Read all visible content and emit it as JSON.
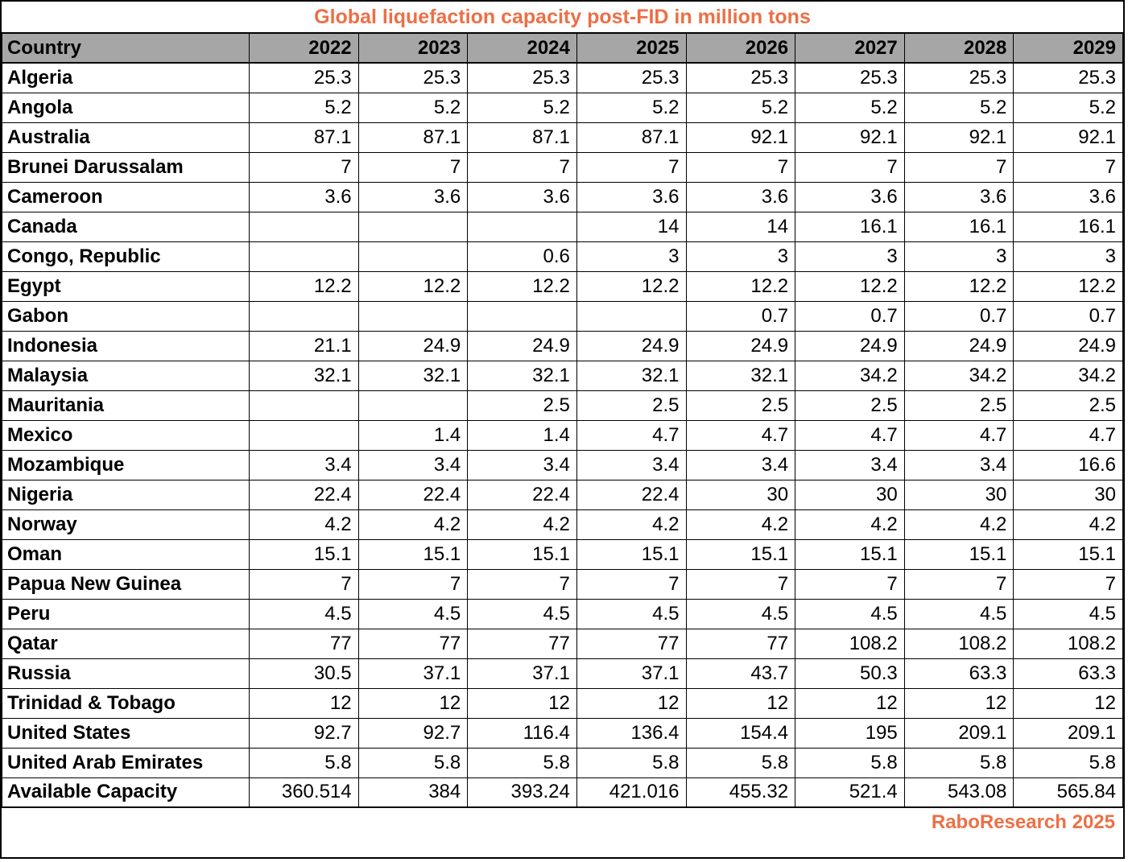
{
  "colors": {
    "accent_orange": "#ED6F45",
    "header_gray": "#A6A6A6",
    "grid_border": "#000000",
    "text_black": "#000000"
  },
  "chart_data": {
    "type": "table",
    "title": "Global liquefaction capacity post-FID in million tons",
    "unit": "million tons",
    "source": "RaboResearch 2025",
    "columns": [
      "Country",
      "2022",
      "2023",
      "2024",
      "2025",
      "2026",
      "2027",
      "2028",
      "2029"
    ],
    "rows": [
      {
        "country": "Algeria",
        "values": [
          "25.3",
          "25.3",
          "25.3",
          "25.3",
          "25.3",
          "25.3",
          "25.3",
          "25.3"
        ]
      },
      {
        "country": "Angola",
        "values": [
          "5.2",
          "5.2",
          "5.2",
          "5.2",
          "5.2",
          "5.2",
          "5.2",
          "5.2"
        ]
      },
      {
        "country": "Australia",
        "values": [
          "87.1",
          "87.1",
          "87.1",
          "87.1",
          "92.1",
          "92.1",
          "92.1",
          "92.1"
        ]
      },
      {
        "country": "Brunei Darussalam",
        "values": [
          "7",
          "7",
          "7",
          "7",
          "7",
          "7",
          "7",
          "7"
        ]
      },
      {
        "country": "Cameroon",
        "values": [
          "3.6",
          "3.6",
          "3.6",
          "3.6",
          "3.6",
          "3.6",
          "3.6",
          "3.6"
        ]
      },
      {
        "country": "Canada",
        "values": [
          "",
          "",
          "",
          "14",
          "14",
          "16.1",
          "16.1",
          "16.1"
        ]
      },
      {
        "country": "Congo, Republic",
        "values": [
          "",
          "",
          "0.6",
          "3",
          "3",
          "3",
          "3",
          "3"
        ]
      },
      {
        "country": "Egypt",
        "values": [
          "12.2",
          "12.2",
          "12.2",
          "12.2",
          "12.2",
          "12.2",
          "12.2",
          "12.2"
        ]
      },
      {
        "country": "Gabon",
        "values": [
          "",
          "",
          "",
          "",
          "0.7",
          "0.7",
          "0.7",
          "0.7"
        ]
      },
      {
        "country": "Indonesia",
        "values": [
          "21.1",
          "24.9",
          "24.9",
          "24.9",
          "24.9",
          "24.9",
          "24.9",
          "24.9"
        ]
      },
      {
        "country": "Malaysia",
        "values": [
          "32.1",
          "32.1",
          "32.1",
          "32.1",
          "32.1",
          "34.2",
          "34.2",
          "34.2"
        ]
      },
      {
        "country": "Mauritania",
        "values": [
          "",
          "",
          "2.5",
          "2.5",
          "2.5",
          "2.5",
          "2.5",
          "2.5"
        ]
      },
      {
        "country": "Mexico",
        "values": [
          "",
          "1.4",
          "1.4",
          "4.7",
          "4.7",
          "4.7",
          "4.7",
          "4.7"
        ]
      },
      {
        "country": "Mozambique",
        "values": [
          "3.4",
          "3.4",
          "3.4",
          "3.4",
          "3.4",
          "3.4",
          "3.4",
          "16.6"
        ]
      },
      {
        "country": "Nigeria",
        "values": [
          "22.4",
          "22.4",
          "22.4",
          "22.4",
          "30",
          "30",
          "30",
          "30"
        ]
      },
      {
        "country": "Norway",
        "values": [
          "4.2",
          "4.2",
          "4.2",
          "4.2",
          "4.2",
          "4.2",
          "4.2",
          "4.2"
        ]
      },
      {
        "country": "Oman",
        "values": [
          "15.1",
          "15.1",
          "15.1",
          "15.1",
          "15.1",
          "15.1",
          "15.1",
          "15.1"
        ]
      },
      {
        "country": "Papua New Guinea",
        "values": [
          "7",
          "7",
          "7",
          "7",
          "7",
          "7",
          "7",
          "7"
        ]
      },
      {
        "country": "Peru",
        "values": [
          "4.5",
          "4.5",
          "4.5",
          "4.5",
          "4.5",
          "4.5",
          "4.5",
          "4.5"
        ]
      },
      {
        "country": "Qatar",
        "values": [
          "77",
          "77",
          "77",
          "77",
          "77",
          "108.2",
          "108.2",
          "108.2"
        ]
      },
      {
        "country": "Russia",
        "values": [
          "30.5",
          "37.1",
          "37.1",
          "37.1",
          "43.7",
          "50.3",
          "63.3",
          "63.3"
        ]
      },
      {
        "country": "Trinidad & Tobago",
        "values": [
          "12",
          "12",
          "12",
          "12",
          "12",
          "12",
          "12",
          "12"
        ]
      },
      {
        "country": "United States",
        "values": [
          "92.7",
          "92.7",
          "116.4",
          "136.4",
          "154.4",
          "195",
          "209.1",
          "209.1"
        ]
      },
      {
        "country": "United Arab Emirates",
        "values": [
          "5.8",
          "5.8",
          "5.8",
          "5.8",
          "5.8",
          "5.8",
          "5.8",
          "5.8"
        ]
      },
      {
        "country": "Available Capacity",
        "values": [
          "360.514",
          "384",
          "393.24",
          "421.016",
          "455.32",
          "521.4",
          "543.08",
          "565.84"
        ]
      }
    ]
  }
}
